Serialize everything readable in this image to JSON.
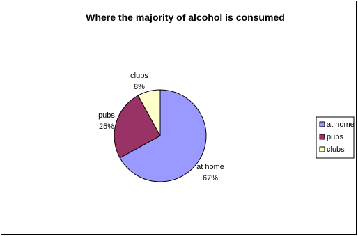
{
  "chart_data": {
    "type": "pie",
    "title": "Where the majority of alcohol is consumed",
    "categories": [
      "at home",
      "pubs",
      "clubs"
    ],
    "values": [
      67,
      25,
      8
    ],
    "labels": [
      "67%",
      "25%",
      "8%"
    ],
    "colors": [
      "#9999ff",
      "#993366",
      "#ffffcc"
    ],
    "legend_position": "right"
  }
}
